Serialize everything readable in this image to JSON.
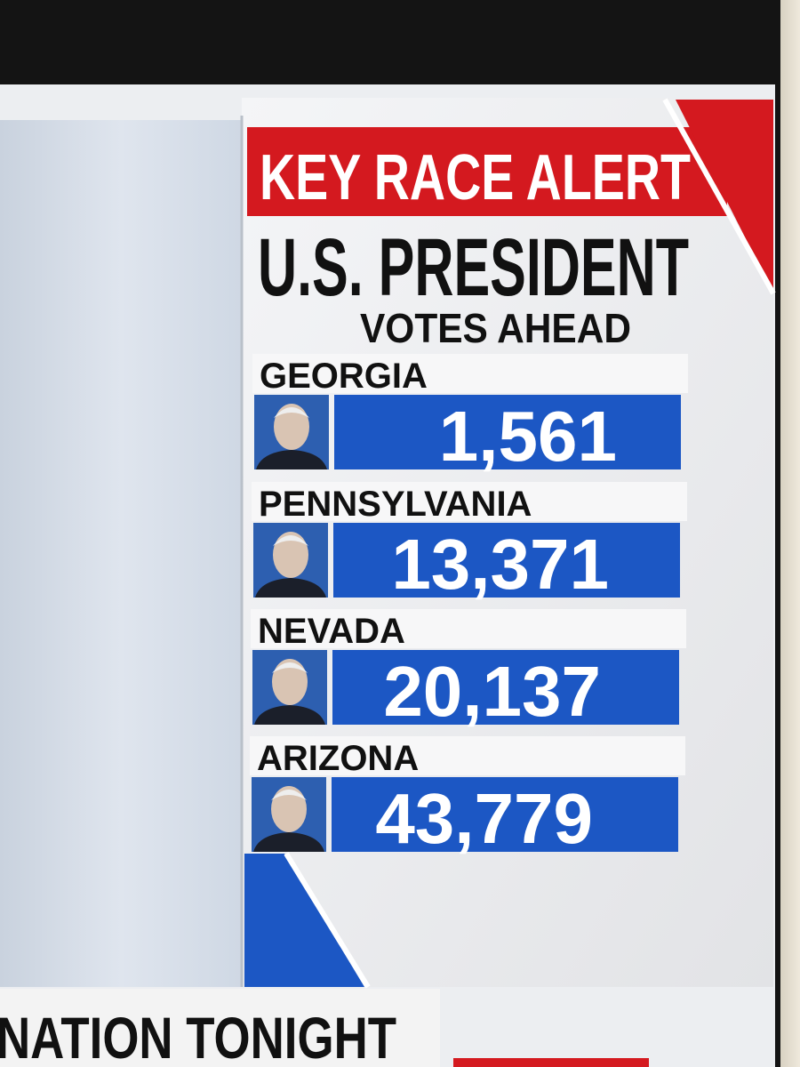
{
  "header": {
    "alert": "KEY RACE ALERT",
    "title": "U.S. PRESIDENT",
    "subtitle": "VOTES AHEAD"
  },
  "races": [
    {
      "state": "GEORGIA",
      "votes_ahead": "1,561"
    },
    {
      "state": "PENNSYLVANIA",
      "votes_ahead": "13,371"
    },
    {
      "state": "NEVADA",
      "votes_ahead": "20,137"
    },
    {
      "state": "ARIZONA",
      "votes_ahead": "43,779"
    }
  ],
  "footer": {
    "ticker": "NATION TONIGHT"
  }
}
